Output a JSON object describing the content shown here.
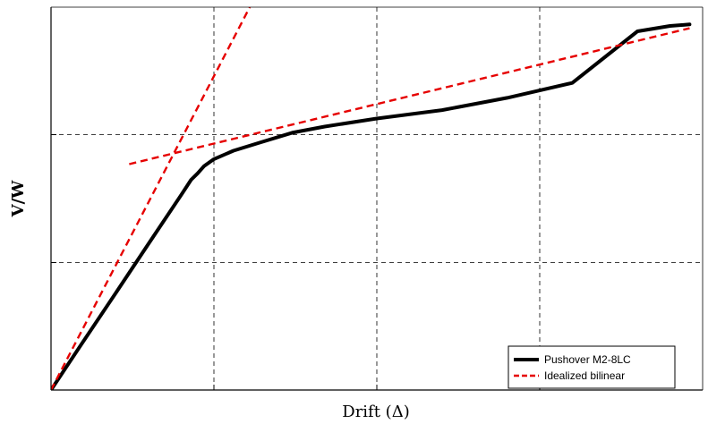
{
  "chart_data": {
    "type": "line",
    "title": "",
    "xlabel": "Drift (Δ)",
    "ylabel": "V/W",
    "xlim": [
      0,
      1
    ],
    "ylim": [
      0,
      1
    ],
    "grid": true,
    "legend_position": "bottom-right",
    "series": [
      {
        "name": "Pushover M2-8LC",
        "color": "#000000",
        "style": "solid",
        "x": [
          0.0,
          0.05,
          0.1,
          0.15,
          0.2,
          0.215,
          0.225,
          0.235,
          0.25,
          0.28,
          0.32,
          0.37,
          0.42,
          0.5,
          0.6,
          0.7,
          0.8,
          0.9,
          0.95,
          0.98
        ],
        "y": [
          0.0,
          0.128,
          0.255,
          0.383,
          0.51,
          0.549,
          0.566,
          0.585,
          0.603,
          0.625,
          0.646,
          0.672,
          0.688,
          0.709,
          0.731,
          0.763,
          0.802,
          0.937,
          0.951,
          0.955
        ]
      },
      {
        "name": "Idealized bilinear",
        "color": "#e60000",
        "style": "dashed",
        "x": [
          0.0,
          0.24,
          0.305,
          0.24,
          0.24,
          0.98
        ],
        "y": [
          0.0,
          0.615,
          1.0,
          0.615,
          0.615,
          0.945
        ]
      }
    ]
  }
}
